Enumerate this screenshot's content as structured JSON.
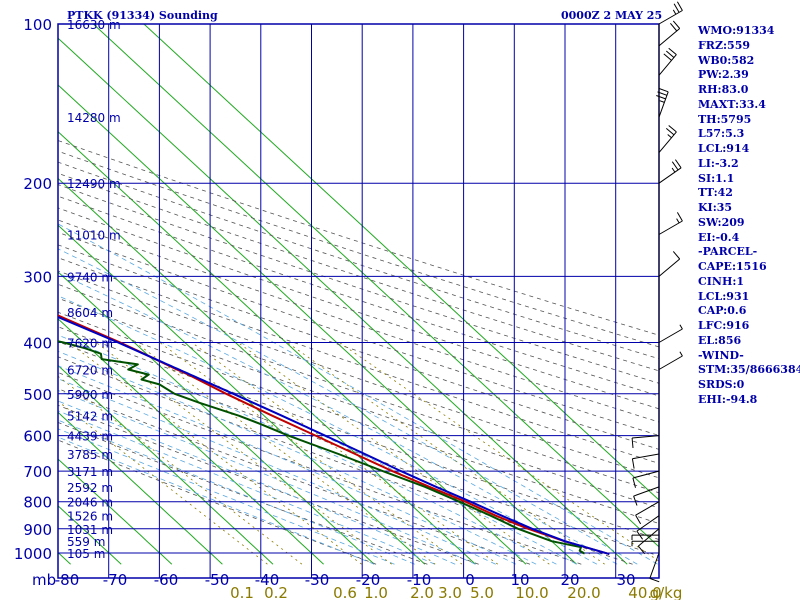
{
  "header": {
    "station": "PTKK (91334) Sounding",
    "time": "0000Z  2 MAY 25"
  },
  "indices": [
    "WMO:91334",
    "FRZ:559",
    "WB0:582",
    "PW:2.39",
    "RH:83.0",
    "MAXT:33.4",
    "TH:5795",
    "L57:5.3",
    "LCL:914",
    "LI:-3.2",
    "SI:1.1",
    "TT:42",
    "KI:35",
    "SW:209",
    "EI:-0.4",
    "-PARCEL-",
    "CAPE:1516",
    "CINH:1",
    "LCL:931",
    "CAP:0.6",
    "LFC:916",
    "EL:856",
    "-WIND-",
    "STM:35/8666384",
    "SRDS:0",
    "EHI:-94.8"
  ],
  "chart_data": {
    "type": "skew-t",
    "xlabel": "",
    "ylabel": "mb",
    "pressure_ticks": [
      100,
      200,
      300,
      400,
      500,
      600,
      700,
      800,
      900,
      1000
    ],
    "pressure_labels": [
      "100",
      "200",
      "300",
      "400",
      "500",
      "600",
      "700",
      "800",
      "900",
      "1000"
    ],
    "temperature_ticks": [
      -80,
      -70,
      -60,
      -50,
      -40,
      -30,
      -20,
      -10,
      0,
      10,
      20,
      30
    ],
    "temperature_labels": [
      "-80",
      "-70",
      "-60",
      "-50",
      "-40",
      "-30",
      "-20",
      "-10",
      "0",
      "10",
      "20",
      "30"
    ],
    "xlim": [
      -80,
      30
    ],
    "ylim": [
      1000,
      100
    ],
    "mixing_ratio_labels": [
      "0.1",
      "0.2",
      "0.6",
      "1.0",
      "2.0",
      "3.0",
      "5.0",
      "10.0",
      "20.0",
      "40.0",
      "g/kg"
    ],
    "height_levels": [
      {
        "p": 100,
        "label": "16630 m"
      },
      {
        "p": 150,
        "label": "14280 m"
      },
      {
        "p": 200,
        "label": "12490 m"
      },
      {
        "p": 250,
        "label": "11010 m"
      },
      {
        "p": 300,
        "label": "9740 m"
      },
      {
        "p": 350,
        "label": "8604 m"
      },
      {
        "p": 400,
        "label": "7620 m"
      },
      {
        "p": 450,
        "label": "6720 m"
      },
      {
        "p": 500,
        "label": "5900 m"
      },
      {
        "p": 550,
        "label": "5142 m"
      },
      {
        "p": 600,
        "label": "4439 m"
      },
      {
        "p": 650,
        "label": "3785 m"
      },
      {
        "p": 700,
        "label": "3171 m"
      },
      {
        "p": 750,
        "label": "2592 m"
      },
      {
        "p": 800,
        "label": "2046 m"
      },
      {
        "p": 850,
        "label": "1526 m"
      },
      {
        "p": 900,
        "label": "1031 m"
      },
      {
        "p": 950,
        "label": "559 m"
      },
      {
        "p": 1000,
        "label": "105 m"
      }
    ],
    "series": [
      {
        "key": "temperature",
        "color": "#c00000",
        "points": [
          [
            1005,
            28.6
          ],
          [
            950,
            22.5
          ],
          [
            900,
            18
          ],
          [
            850,
            14.4
          ],
          [
            800,
            11.4
          ],
          [
            750,
            7.5
          ],
          [
            700,
            3.5
          ],
          [
            650,
            -0.2
          ],
          [
            600,
            -4.1
          ],
          [
            550,
            -8.4
          ],
          [
            500,
            -12.8
          ],
          [
            460,
            -16.2
          ],
          [
            450,
            -17.4
          ],
          [
            420,
            -20.5
          ],
          [
            400,
            -22.8
          ],
          [
            350,
            -30.2
          ],
          [
            300,
            -39.5
          ],
          [
            250,
            -49.2
          ],
          [
            200,
            -57.8
          ],
          [
            150,
            -64.8
          ],
          [
            100,
            -64.5
          ]
        ]
      },
      {
        "key": "dewpoint",
        "color": "#005000",
        "points": [
          [
            1005,
            23.5
          ],
          [
            1000,
            23.8
          ],
          [
            990,
            23.5
          ],
          [
            975,
            24.5
          ],
          [
            950,
            20
          ],
          [
            900,
            16
          ],
          [
            850,
            13.4
          ],
          [
            800,
            10.2
          ],
          [
            750,
            6.6
          ],
          [
            700,
            1.6
          ],
          [
            650,
            -3.5
          ],
          [
            600,
            -9.5
          ],
          [
            570,
            -12.5
          ],
          [
            550,
            -15
          ],
          [
            520,
            -20
          ],
          [
            500,
            -23
          ],
          [
            480,
            -24
          ],
          [
            470,
            -26.5
          ],
          [
            460,
            -24
          ],
          [
            450,
            -27
          ],
          [
            440,
            -24
          ],
          [
            430,
            -30
          ],
          [
            420,
            -29
          ],
          [
            410,
            -31
          ],
          [
            400,
            -34
          ],
          [
            350,
            -53.5
          ],
          [
            300,
            -64
          ],
          [
            250,
            -75
          ],
          [
            200,
            -77
          ],
          [
            150,
            -83.5
          ],
          [
            100,
            -84.5
          ]
        ]
      },
      {
        "key": "parcel",
        "color": "#0000c0",
        "points": [
          [
            1005,
            28.6
          ],
          [
            950,
            22.6
          ],
          [
            900,
            18.8
          ],
          [
            850,
            15.6
          ],
          [
            800,
            12.4
          ],
          [
            750,
            8.8
          ],
          [
            700,
            5.2
          ],
          [
            650,
            1.7
          ],
          [
            600,
            -2.2
          ],
          [
            550,
            -6.5
          ],
          [
            500,
            -11.4
          ],
          [
            450,
            -17
          ],
          [
            400,
            -23.2
          ],
          [
            350,
            -31
          ],
          [
            300,
            -40
          ],
          [
            250,
            -50
          ],
          [
            200,
            -60
          ],
          [
            150,
            -72
          ],
          [
            100,
            -91
          ]
        ]
      }
    ],
    "wind_barbs": [
      {
        "p": 1000,
        "dir": 200,
        "spd": 10
      },
      {
        "p": 950,
        "dir": 270,
        "spd": 5
      },
      {
        "p": 925,
        "dir": 270,
        "spd": 5
      },
      {
        "p": 900,
        "dir": 230,
        "spd": 10
      },
      {
        "p": 850,
        "dir": 235,
        "spd": 10
      },
      {
        "p": 800,
        "dir": 240,
        "spd": 10
      },
      {
        "p": 750,
        "dir": 250,
        "spd": 10
      },
      {
        "p": 700,
        "dir": 255,
        "spd": 10
      },
      {
        "p": 650,
        "dir": 260,
        "spd": 10
      },
      {
        "p": 600,
        "dir": 265,
        "spd": 10
      },
      {
        "p": 450,
        "dir": 60,
        "spd": 5
      },
      {
        "p": 400,
        "dir": 60,
        "spd": 5
      },
      {
        "p": 300,
        "dir": 50,
        "spd": 10
      },
      {
        "p": 250,
        "dir": 60,
        "spd": 15
      },
      {
        "p": 200,
        "dir": 55,
        "spd": 25
      },
      {
        "p": 175,
        "dir": 40,
        "spd": 25
      },
      {
        "p": 150,
        "dir": 20,
        "spd": 35
      },
      {
        "p": 125,
        "dir": 40,
        "spd": 30
      },
      {
        "p": 110,
        "dir": 50,
        "spd": 20
      },
      {
        "p": 100,
        "dir": 60,
        "spd": 25
      }
    ]
  }
}
